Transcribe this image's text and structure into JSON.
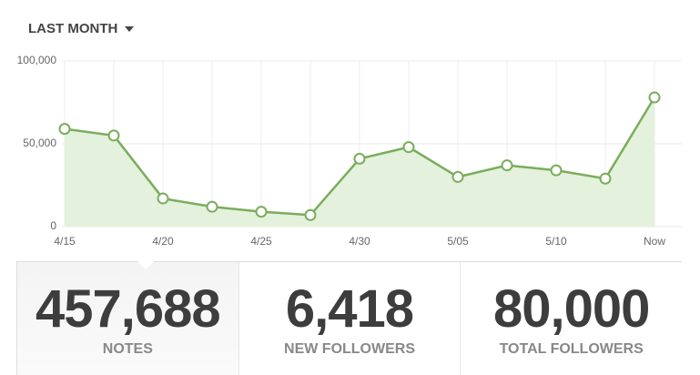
{
  "header": {
    "title": "LAST MONTH"
  },
  "chart_data": {
    "type": "line",
    "categories": [
      "4/15",
      null,
      "4/20",
      null,
      "4/25",
      null,
      "4/30",
      null,
      "5/05",
      null,
      "5/10",
      null,
      "Now"
    ],
    "series": [
      {
        "color": "#7aad5c",
        "values": [
          59000,
          55000,
          17000,
          12000,
          9000,
          7000,
          41000,
          48000,
          30000,
          37000,
          34000,
          29000,
          78000
        ]
      }
    ],
    "ylim": [
      0,
      100000
    ],
    "yticks": [
      0,
      {
        "value": 50000,
        "label": "50,000"
      },
      {
        "value": 100000,
        "label": "100,000"
      }
    ],
    "grid": true
  },
  "stats": [
    {
      "value": "457,688",
      "label": "NOTES"
    },
    {
      "value": "6,418",
      "label": "NEW FOLLOWERS"
    },
    {
      "value": "80,000",
      "label": "TOTAL FOLLOWERS"
    }
  ]
}
